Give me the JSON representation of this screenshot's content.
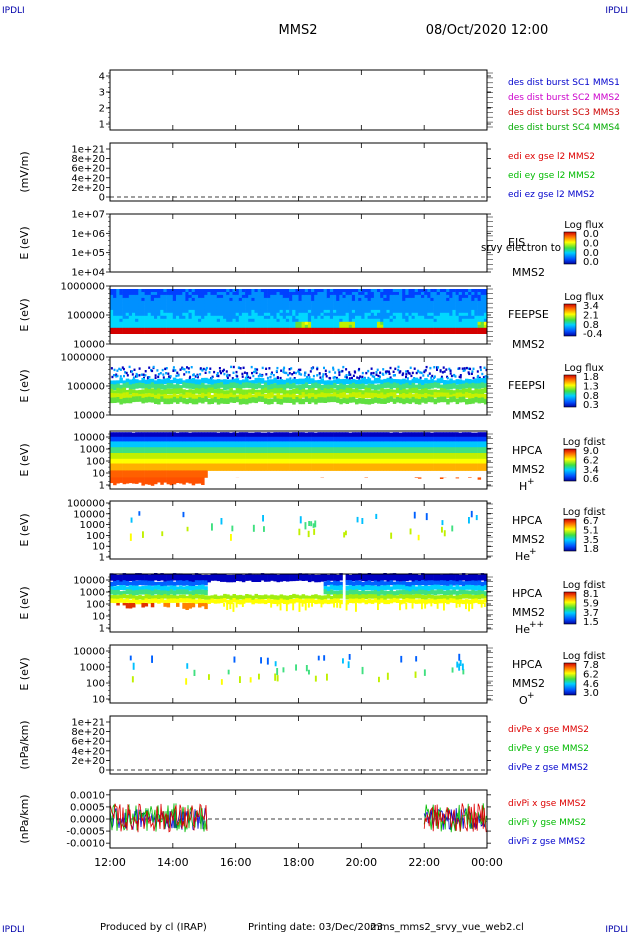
{
  "header": {
    "corner_left": "IPDLI",
    "corner_right": "IPDLI",
    "spacecraft": "MMS2",
    "datetime": "08/Oct/2020 12:00"
  },
  "footer": {
    "produced_by": "Produced by cl (IRAP)",
    "printing_date": "Printing date: 03/Dec/2023",
    "script_name": "mms_mms2_srvy_vue_web2.cl",
    "corner_left": "IPDLI",
    "corner_right": "IPDLI"
  },
  "colors": {
    "mms1": "#0000cc",
    "mms2": "#cc00cc",
    "mms3": "#cc0000",
    "mms4": "#00aa00",
    "x_comp": "#dd0000",
    "y_comp": "#00bb00",
    "z_comp": "#0000cc"
  },
  "chart_data": {
    "type": "multi-panel",
    "x_ticks": [
      "12:00",
      "14:00",
      "16:00",
      "18:00",
      "20:00",
      "22:00",
      "00:00"
    ],
    "panels": [
      {
        "id": "des",
        "type": "line",
        "y_ticks": [
          "1",
          "2",
          "3",
          "4"
        ],
        "ylim": [
          0.5,
          4.5
        ],
        "legend": [
          {
            "text": "des dist burst SC1 MMS1",
            "color_key": "mms1"
          },
          {
            "text": "des dist burst SC2 MMS2",
            "color_key": "mms2"
          },
          {
            "text": "des dist burst SC3 MMS3",
            "color_key": "mms3"
          },
          {
            "text": "des dist burst SC4 MMS4",
            "color_key": "mms4"
          }
        ]
      },
      {
        "id": "edi",
        "type": "line",
        "ylabel": "(mV/m)",
        "y_ticks": [
          "0",
          "2e+20",
          "4e+20",
          "6e+20",
          "8e+20",
          "1e+21"
        ],
        "ylim": [
          0,
          1e+21
        ],
        "legend": [
          {
            "text": "edi ex gse l2 MMS2",
            "color_key": "x_comp"
          },
          {
            "text": "edi ey gse l2 MMS2",
            "color_key": "y_comp"
          },
          {
            "text": "edi ez gse l2 MMS2",
            "color_key": "z_comp"
          }
        ]
      },
      {
        "id": "eis",
        "type": "heatmap",
        "ylabel": "E (eV)",
        "y_ticks": [
          "1e+04",
          "1e+05",
          "1e+06",
          "1e+07"
        ],
        "log_y": true,
        "ylim": [
          10000,
          10000000
        ],
        "instrument": [
          "EIS",
          "MMS2"
        ],
        "overlay_text": "srvy electron to",
        "colorbar": {
          "title": "Log flux",
          "ticks": [
            "0.0",
            "0.0",
            "0.0",
            "0.0"
          ]
        }
      },
      {
        "id": "feepse",
        "type": "heatmap",
        "ylabel": "E (eV)",
        "y_ticks": [
          "10000",
          "100000",
          "1000000"
        ],
        "log_y": true,
        "ylim": [
          10000,
          1000000
        ],
        "instrument": [
          "FEEPSE",
          "MMS2"
        ],
        "colorbar": {
          "title": "Log flux",
          "ticks": [
            "3.4",
            "2.1",
            "0.8",
            "-0.4"
          ]
        }
      },
      {
        "id": "feepsi",
        "type": "heatmap",
        "ylabel": "E (eV)",
        "y_ticks": [
          "10000",
          "100000",
          "1000000"
        ],
        "log_y": true,
        "ylim": [
          10000,
          1000000
        ],
        "instrument": [
          "FEEPSI",
          "MMS2"
        ],
        "colorbar": {
          "title": "Log flux",
          "ticks": [
            "1.8",
            "1.3",
            "0.8",
            "0.3"
          ]
        }
      },
      {
        "id": "hpca_h",
        "type": "heatmap",
        "ylabel": "E (eV)",
        "y_ticks": [
          "1",
          "10",
          "100",
          "1000",
          "10000"
        ],
        "log_y": true,
        "ylim": [
          1,
          40000
        ],
        "instrument": [
          "HPCA",
          "MMS2"
        ],
        "species": "H",
        "charge": "+",
        "colorbar": {
          "title": "Log fdist",
          "ticks": [
            "9.0",
            "6.2",
            "3.4",
            "0.6"
          ]
        }
      },
      {
        "id": "hpca_he",
        "type": "heatmap",
        "ylabel": "E (eV)",
        "y_ticks": [
          "1",
          "10",
          "100",
          "1000",
          "10000",
          "100000"
        ],
        "log_y": true,
        "ylim": [
          1,
          100000
        ],
        "instrument": [
          "HPCA",
          "MMS2"
        ],
        "species": "He",
        "charge": "+",
        "colorbar": {
          "title": "Log fdist",
          "ticks": [
            "6.7",
            "5.1",
            "3.5",
            "1.8"
          ]
        }
      },
      {
        "id": "hpca_hepp",
        "type": "heatmap",
        "ylabel": "E (eV)",
        "y_ticks": [
          "1",
          "10",
          "100",
          "1000",
          "10000"
        ],
        "log_y": true,
        "ylim": [
          1,
          40000
        ],
        "instrument": [
          "HPCA",
          "MMS2"
        ],
        "species": "He",
        "charge": "++",
        "colorbar": {
          "title": "Log fdist",
          "ticks": [
            "8.1",
            "5.9",
            "3.7",
            "1.5"
          ]
        }
      },
      {
        "id": "hpca_o",
        "type": "heatmap",
        "ylabel": "E (eV)",
        "y_ticks": [
          "10",
          "100",
          "1000",
          "10000"
        ],
        "log_y": true,
        "ylim": [
          10,
          40000
        ],
        "instrument": [
          "HPCA",
          "MMS2"
        ],
        "species": "O",
        "charge": "+",
        "colorbar": {
          "title": "Log fdist",
          "ticks": [
            "7.8",
            "6.2",
            "4.6",
            "3.0"
          ]
        }
      },
      {
        "id": "divpe",
        "type": "line",
        "ylabel": "(nPa/km)",
        "y_ticks": [
          "0",
          "2e+20",
          "4e+20",
          "6e+20",
          "8e+20",
          "1e+21"
        ],
        "ylim": [
          0,
          1e+21
        ],
        "legend": [
          {
            "text": "divPe x gse MMS2",
            "color_key": "x_comp"
          },
          {
            "text": "divPe y gse MMS2",
            "color_key": "y_comp"
          },
          {
            "text": "divPe z gse MMS2",
            "color_key": "z_comp"
          }
        ]
      },
      {
        "id": "divpi",
        "type": "line",
        "ylabel": "(nPa/km)",
        "y_ticks": [
          "-0.0010",
          "-0.0005",
          "0.0000",
          "0.0005",
          "0.0010"
        ],
        "ylim": [
          -0.0012,
          0.0012
        ],
        "data_intervals_hours": [
          [
            12.0,
            15.1
          ],
          [
            22.0,
            24.0
          ]
        ],
        "legend": [
          {
            "text": "divPi x gse MMS2",
            "color_key": "x_comp"
          },
          {
            "text": "divPi y gse MMS2",
            "color_key": "y_comp"
          },
          {
            "text": "divPi z gse MMS2",
            "color_key": "z_comp"
          }
        ]
      }
    ]
  }
}
